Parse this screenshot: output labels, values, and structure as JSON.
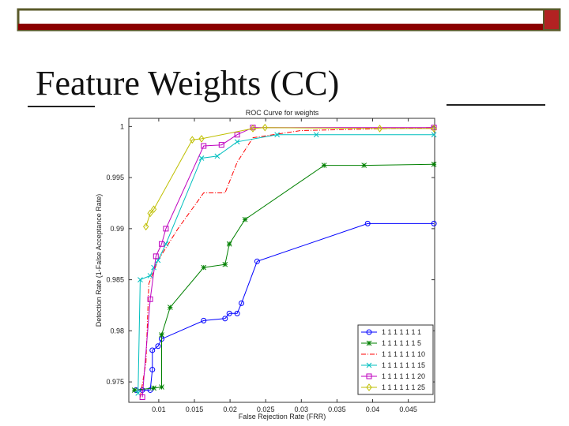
{
  "slide": {
    "title": "Feature Weights (CC)"
  },
  "chart_data": {
    "type": "line",
    "title": "ROC Curve for weights",
    "x_label": "False Rejection Rate (FRR)",
    "y_label": "Detection Rate (1-False Acceptance Rate)",
    "xlim": [
      0.0058,
      0.0487
    ],
    "ylim": [
      0.973,
      1.0008
    ],
    "xticks": [
      0.01,
      0.015,
      0.02,
      0.025,
      0.03,
      0.035,
      0.04,
      0.045
    ],
    "yticks": [
      0.975,
      0.98,
      0.985,
      0.99,
      0.995,
      1
    ],
    "legend": "lower right",
    "series": [
      {
        "name": "1 1 1 1 1 1 1",
        "color": "#0000ff",
        "marker": "o",
        "linestyle": "-",
        "x": [
          0.0068,
          0.0077,
          0.0088,
          0.0091,
          0.0091,
          0.0099,
          0.0104,
          0.0163,
          0.0193,
          0.0199,
          0.021,
          0.0216,
          0.0238,
          0.0393,
          0.0486
        ],
        "values": [
          0.9742,
          0.9742,
          0.9742,
          0.9762,
          0.9781,
          0.9785,
          0.9792,
          0.981,
          0.9812,
          0.9817,
          0.9817,
          0.9827,
          0.9868,
          0.9905,
          0.9905
        ]
      },
      {
        "name": "1 1 1 1 1 1 5",
        "color": "#008000",
        "marker": "*",
        "linestyle": "-",
        "x": [
          0.0066,
          0.0093,
          0.0104,
          0.0104,
          0.0116,
          0.0163,
          0.0193,
          0.0199,
          0.0221,
          0.0332,
          0.0388,
          0.0486
        ],
        "values": [
          0.9742,
          0.9744,
          0.9745,
          0.9796,
          0.9823,
          0.9862,
          0.9865,
          0.9885,
          0.9909,
          0.9962,
          0.9962,
          0.9963
        ]
      },
      {
        "name": "1 1 1 1 1 1 10",
        "color": "#ff0000",
        "linestyle": "-.",
        "x": [
          0.0074,
          0.0082,
          0.0086,
          0.0099,
          0.0127,
          0.0163,
          0.0193,
          0.021,
          0.0232,
          0.0299,
          0.0486
        ],
        "values": [
          0.9735,
          0.9769,
          0.9846,
          0.9869,
          0.99,
          0.9935,
          0.9935,
          0.9965,
          0.9989,
          0.9996,
          0.9999
        ]
      },
      {
        "name": "1 1 1 1 1 1 15",
        "color": "#00bfbf",
        "marker": "x",
        "linestyle": "-",
        "x": [
          0.0071,
          0.0074,
          0.0088,
          0.0093,
          0.0099,
          0.011,
          0.016,
          0.0182,
          0.021,
          0.0266,
          0.0321,
          0.0486
        ],
        "values": [
          0.9739,
          0.985,
          0.9854,
          0.9862,
          0.9869,
          0.9885,
          0.9969,
          0.9971,
          0.9985,
          0.9992,
          0.9992,
          0.9992
        ]
      },
      {
        "name": "1 1 1 1 1 1 20",
        "color": "#bf00bf",
        "marker": "s",
        "linestyle": "-",
        "x": [
          0.0077,
          0.0088,
          0.0096,
          0.0104,
          0.011,
          0.0163,
          0.0188,
          0.021,
          0.0232,
          0.0486
        ],
        "values": [
          0.9735,
          0.9831,
          0.9873,
          0.9885,
          0.99,
          0.9981,
          0.9982,
          0.9992,
          0.9999,
          0.9999
        ]
      },
      {
        "name": "1 1 1 1 1 1 25",
        "color": "#bfbf00",
        "marker": "d",
        "linestyle": "-",
        "x": [
          0.0082,
          0.0088,
          0.0093,
          0.0147,
          0.016,
          0.0232,
          0.0249,
          0.041,
          0.0486
        ],
        "values": [
          0.9902,
          0.9915,
          0.9919,
          0.9987,
          0.9988,
          0.9998,
          0.9999,
          0.9998,
          0.9998
        ]
      }
    ]
  }
}
